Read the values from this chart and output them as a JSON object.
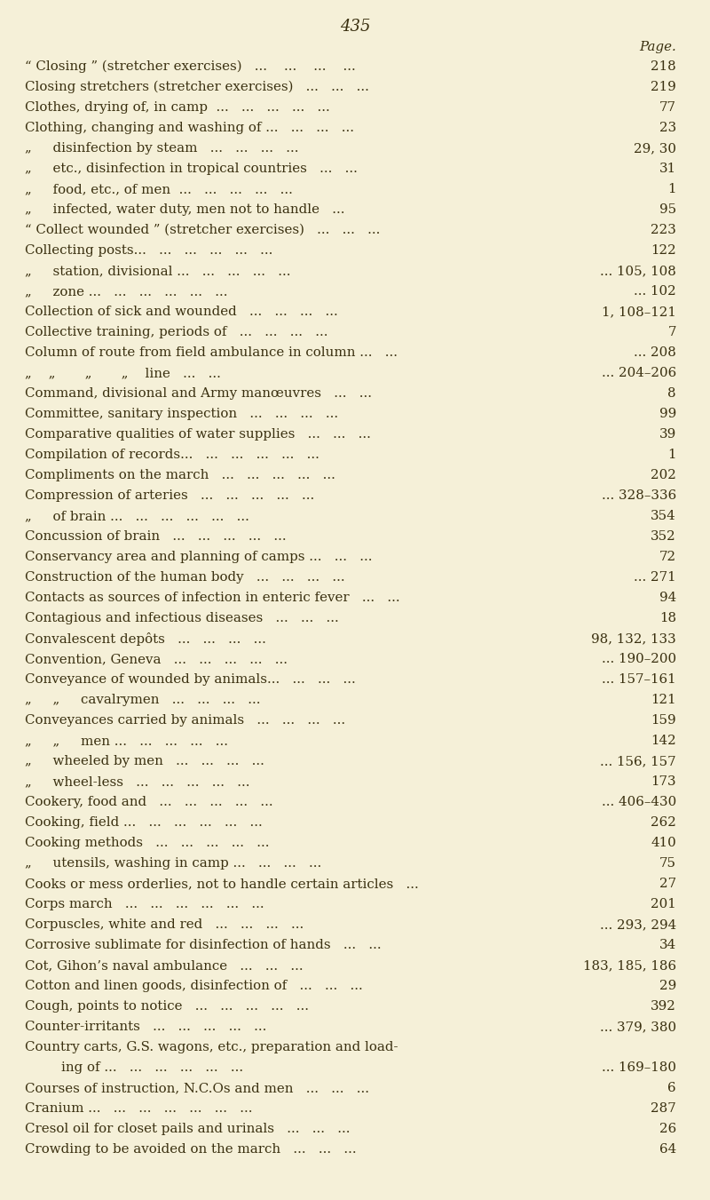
{
  "page_number": "435",
  "background_color": "#f5f0d8",
  "text_color": "#3a3010",
  "page_label": "Page.",
  "figsize": [
    8.0,
    13.51
  ],
  "dpi": 100,
  "entries": [
    [
      0,
      "“ Closing ” (stretcher exercises)   ...    ...    ...    ...",
      "218"
    ],
    [
      0,
      "Closing stretchers (stretcher exercises)   ...   ...   ...",
      "219"
    ],
    [
      0,
      "Clothes, drying of, in camp  ...   ...   ...   ...   ...",
      "77"
    ],
    [
      0,
      "Clothing, changing and washing of ...   ...   ...   ...",
      "23"
    ],
    [
      1,
      "„     disinfection by steam   ...   ...   ...   ...",
      "29, 30"
    ],
    [
      1,
      "„     etc., disinfection in tropical countries   ...   ...",
      "31"
    ],
    [
      1,
      "„     food, etc., of men  ...   ...   ...   ...   ...",
      "1"
    ],
    [
      1,
      "„     infected, water duty, men not to handle   ...",
      "95"
    ],
    [
      0,
      "“ Collect wounded ” (stretcher exercises)   ...   ...   ...",
      "223"
    ],
    [
      0,
      "Collecting posts...   ...   ...   ...   ...   ...",
      "122"
    ],
    [
      1,
      "„     station, divisional ...   ...   ...   ...   ...",
      "... 105, 108"
    ],
    [
      1,
      "„     zone ...   ...   ...   ...   ...   ...",
      "... 102"
    ],
    [
      0,
      "Collection of sick and wounded   ...   ...   ...   ...",
      "1, 108–121"
    ],
    [
      0,
      "Collective training, periods of   ...   ...   ...   ...",
      "7"
    ],
    [
      0,
      "Column of route from field ambulance in column ...   ...",
      "... 208"
    ],
    [
      1,
      "„    „       „       „    line   ...   ...",
      "... 204–206"
    ],
    [
      0,
      "Command, divisional and Army manœuvres   ...   ...",
      "8"
    ],
    [
      0,
      "Committee, sanitary inspection   ...   ...   ...   ...",
      "99"
    ],
    [
      0,
      "Comparative qualities of water supplies   ...   ...   ...",
      "39"
    ],
    [
      0,
      "Compilation of records...   ...   ...   ...   ...   ...",
      "1"
    ],
    [
      0,
      "Compliments on the march   ...   ...   ...   ...   ...",
      "202"
    ],
    [
      0,
      "Compression of arteries   ...   ...   ...   ...   ...",
      "... 328–336"
    ],
    [
      1,
      "„     of brain ...   ...   ...   ...   ...   ...",
      "354"
    ],
    [
      0,
      "Concussion of brain   ...   ...   ...   ...   ...",
      "352"
    ],
    [
      0,
      "Conservancy area and planning of camps ...   ...   ...",
      "72"
    ],
    [
      0,
      "Construction of the human body   ...   ...   ...   ...",
      "... 271"
    ],
    [
      0,
      "Contacts as sources of infection in enteric fever   ...   ...",
      "94"
    ],
    [
      0,
      "Contagious and infectious diseases   ...   ...   ...",
      "18"
    ],
    [
      0,
      "Convalescent depôts   ...   ...   ...   ...",
      "98, 132, 133"
    ],
    [
      0,
      "Convention, Geneva   ...   ...   ...   ...   ...",
      "... 190–200"
    ],
    [
      0,
      "Conveyance of wounded by animals...   ...   ...   ...",
      "... 157–161"
    ],
    [
      1,
      "„     „     cavalrymen   ...   ...   ...   ...",
      "121"
    ],
    [
      0,
      "Conveyances carried by animals   ...   ...   ...   ...",
      "159"
    ],
    [
      1,
      "„     „     men ...   ...   ...   ...   ...",
      "142"
    ],
    [
      1,
      "„     wheeled by men   ...   ...   ...   ...",
      "... 156, 157"
    ],
    [
      1,
      "„     wheel-less   ...   ...   ...   ...   ...",
      "173"
    ],
    [
      0,
      "Cookery, food and   ...   ...   ...   ...   ...",
      "... 406–430"
    ],
    [
      0,
      "Cooking, field ...   ...   ...   ...   ...   ...",
      "262"
    ],
    [
      0,
      "Cooking methods   ...   ...   ...   ...   ...",
      "410"
    ],
    [
      1,
      "„     utensils, washing in camp ...   ...   ...   ...",
      "75"
    ],
    [
      0,
      "Cooks or mess orderlies, not to handle certain articles   ...",
      "27"
    ],
    [
      0,
      "Corps march   ...   ...   ...   ...   ...   ...",
      "201"
    ],
    [
      0,
      "Corpuscles, white and red   ...   ...   ...   ...",
      "... 293, 294"
    ],
    [
      0,
      "Corrosive sublimate for disinfection of hands   ...   ...",
      "34"
    ],
    [
      0,
      "Cot, Gihon’s naval ambulance   ...   ...   ...",
      "183, 185, 186"
    ],
    [
      0,
      "Cotton and linen goods, disinfection of   ...   ...   ...",
      "29"
    ],
    [
      0,
      "Cough, points to notice   ...   ...   ...   ...   ...",
      "392"
    ],
    [
      0,
      "Counter-irritants   ...   ...   ...   ...   ...",
      "... 379, 380"
    ],
    [
      0,
      "Country carts, G.S. wagons, etc., preparation and load-",
      ""
    ],
    [
      2,
      "    ing of ...   ...   ...   ...   ...   ...",
      "... 169–180"
    ],
    [
      0,
      "Courses of instruction, N.C.Os and men   ...   ...   ...",
      "6"
    ],
    [
      0,
      "Cranium ...   ...   ...   ...   ...   ...   ...",
      "287"
    ],
    [
      0,
      "Cresol oil for closet pails and urinals   ...   ...   ...",
      "26"
    ],
    [
      0,
      "Crowding to be avoided on the march   ...   ...   ...",
      "64"
    ]
  ]
}
